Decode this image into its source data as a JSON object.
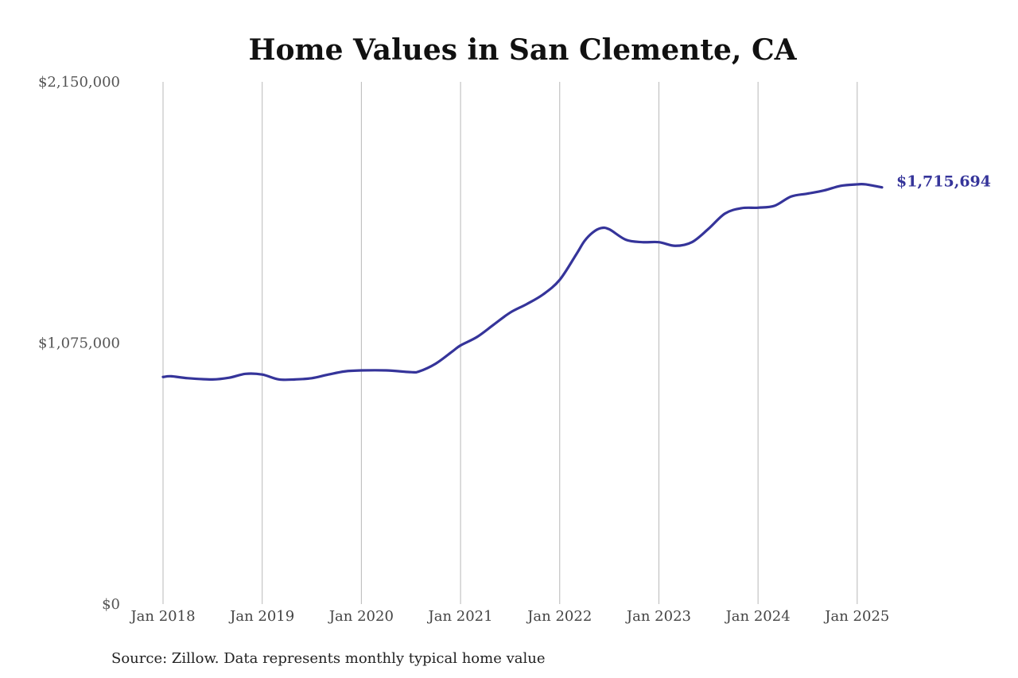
{
  "chart_data": {
    "type": "line",
    "title": "Home Values in San Clemente, CA",
    "source": "Source: Zillow. Data represents monthly typical home value",
    "color": "#35349a",
    "grid": "vertical",
    "ylim": [
      0,
      2150000
    ],
    "y_ticks": [
      {
        "value": 0,
        "label": "$0"
      },
      {
        "value": 1075000,
        "label": "$1,075,000"
      },
      {
        "value": 2150000,
        "label": "$2,150,000"
      }
    ],
    "x_ticks": [
      {
        "value": 2018.0,
        "label": "Jan 2018"
      },
      {
        "value": 2019.0,
        "label": "Jan 2019"
      },
      {
        "value": 2020.0,
        "label": "Jan 2020"
      },
      {
        "value": 2021.0,
        "label": "Jan 2021"
      },
      {
        "value": 2022.0,
        "label": "Jan 2022"
      },
      {
        "value": 2023.0,
        "label": "Jan 2023"
      },
      {
        "value": 2024.0,
        "label": "Jan 2024"
      },
      {
        "value": 2025.0,
        "label": "Jan 2025"
      }
    ],
    "xlim": [
      2018.0,
      2025.25
    ],
    "end_label": "$1,715,694",
    "series": [
      {
        "x": [
          2018.0,
          2018.083,
          2018.25,
          2018.5,
          2018.667,
          2018.833,
          2019.0,
          2019.167,
          2019.333,
          2019.5,
          2019.667,
          2019.833,
          2020.0,
          2020.25,
          2020.5,
          2020.583,
          2020.75,
          2020.917,
          2021.0,
          2021.167,
          2021.333,
          2021.5,
          2021.667,
          2021.833,
          2022.0,
          2022.167,
          2022.25,
          2022.333,
          2022.417,
          2022.5,
          2022.667,
          2022.833,
          2023.0,
          2023.167,
          2023.333,
          2023.5,
          2023.667,
          2023.833,
          2024.0,
          2024.167,
          2024.333,
          2024.5,
          2024.667,
          2024.833,
          2025.0,
          2025.083,
          2025.25
        ],
        "y": [
          935000,
          938000,
          930000,
          925000,
          932000,
          948000,
          945000,
          925000,
          925000,
          930000,
          945000,
          958000,
          962000,
          962000,
          955000,
          958000,
          990000,
          1040000,
          1065000,
          1100000,
          1150000,
          1200000,
          1235000,
          1275000,
          1335000,
          1440000,
          1495000,
          1530000,
          1548000,
          1543000,
          1500000,
          1490000,
          1490000,
          1475000,
          1490000,
          1545000,
          1608000,
          1630000,
          1632000,
          1640000,
          1678000,
          1690000,
          1703000,
          1722000,
          1728000,
          1728000,
          1715694
        ]
      }
    ]
  }
}
